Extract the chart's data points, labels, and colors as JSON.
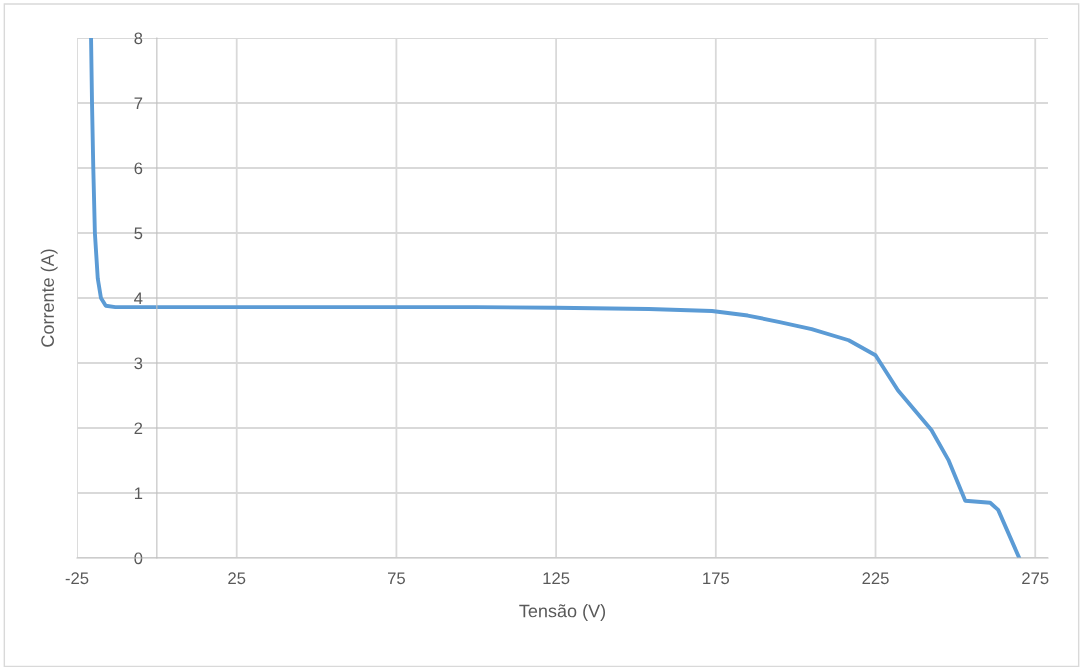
{
  "chart_data": {
    "type": "line",
    "xlabel": "Tensão (V)",
    "ylabel": "Corrente (A)",
    "xlim": [
      -25,
      279
    ],
    "xticks": [
      -25,
      25,
      75,
      125,
      175,
      225,
      275
    ],
    "ylim": [
      0,
      8
    ],
    "yticks": [
      0,
      1,
      2,
      3,
      4,
      5,
      6,
      7,
      8
    ],
    "grid": true,
    "marker": "none",
    "line_style": "solid",
    "series": [
      {
        "color": "#5b9bd5",
        "x": [
          -20.6,
          -20.3,
          -19.9,
          -19.4,
          -18.5,
          -17.5,
          -16,
          -13,
          0,
          50,
          100,
          125,
          154,
          173.8,
          185,
          195,
          205,
          216.6,
          225,
          232,
          242.5,
          247.8,
          253.1,
          260.9,
          263.4,
          270
        ],
        "values": [
          8,
          7,
          6,
          5,
          4.3,
          4.0,
          3.88,
          3.86,
          3.86,
          3.86,
          3.86,
          3.85,
          3.83,
          3.8,
          3.73,
          3.63,
          3.52,
          3.35,
          3.12,
          2.58,
          1.97,
          1.51,
          0.88,
          0.85,
          0.74,
          0
        ]
      }
    ]
  }
}
